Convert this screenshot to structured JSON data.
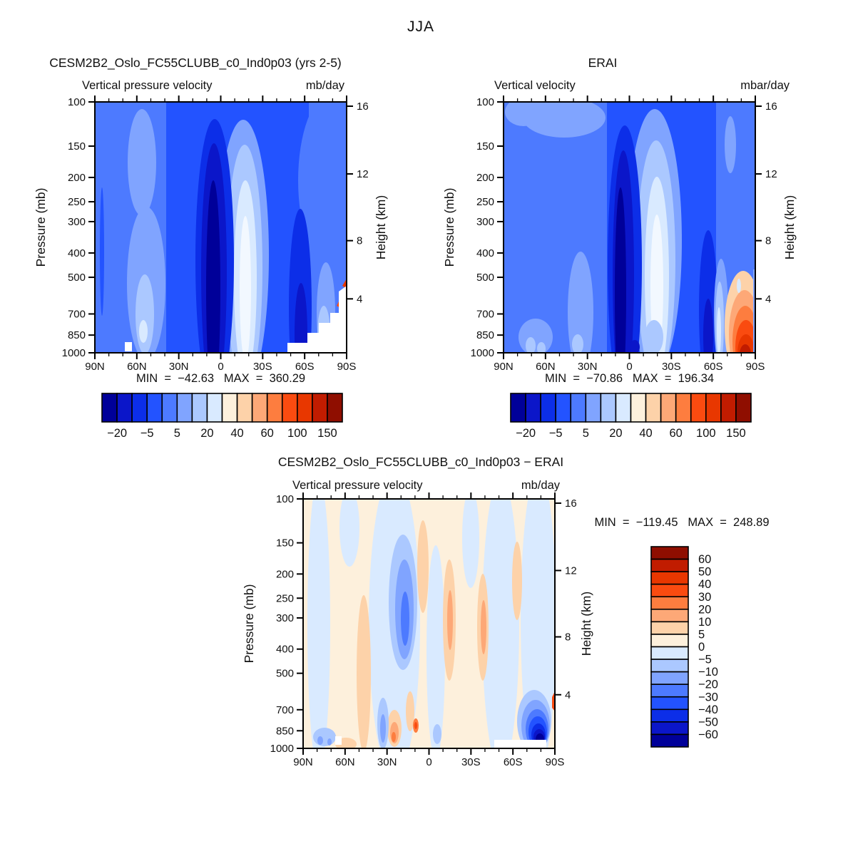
{
  "header": {
    "season_title": "JJA"
  },
  "colors": {
    "frame": "#000000",
    "text": "#111111",
    "palette_blue_to_red": [
      "#000099",
      "#0b16c9",
      "#0c2ee8",
      "#2353ff",
      "#4d7aff",
      "#80a4ff",
      "#abc8ff",
      "#d9eaff",
      "#fdf0dc",
      "#fdd2a9",
      "#fda877",
      "#fd7d3f",
      "#fa4b10",
      "#e83700",
      "#c11c00",
      "#8f0e00"
    ]
  },
  "axis": {
    "x_tick_labels": [
      "90N",
      "60N",
      "30N",
      "0",
      "30S",
      "60S",
      "90S"
    ],
    "pressure_tick_labels": [
      "100",
      "150",
      "200",
      "250",
      "300",
      "400",
      "500",
      "700",
      "850",
      "1000"
    ],
    "height_tick_labels": [
      "16",
      "12",
      "8",
      "4"
    ],
    "pressure_axis_title": "Pressure (mb)",
    "height_axis_title": "Height (km)"
  },
  "panels": {
    "model": {
      "title": "CESM2B2_Oslo_FC55CLUBB_c0_Ind0p03 (yrs 2-5)",
      "field_label": "Vertical pressure velocity",
      "units_label": "mb/day",
      "stats_text": "MIN  =  −42.63   MAX  =  360.29"
    },
    "erai": {
      "title": "ERAI",
      "field_label": "Vertical velocity",
      "units_label": "mbar/day",
      "stats_text": "MIN  =  −70.86   MAX  =  196.34"
    },
    "diff": {
      "title": "CESM2B2_Oslo_FC55CLUBB_c0_Ind0p03 − ERAI",
      "field_label": "Vertical pressure velocity",
      "units_label": "mb/day",
      "stats_text": "MIN  =  −119.45   MAX  =  248.89"
    }
  },
  "colorbars": {
    "horizontal_labels": [
      "−20",
      "−5",
      "5",
      "20",
      "40",
      "60",
      "100",
      "150"
    ],
    "vertical_labels_top_to_bottom": [
      "60",
      "50",
      "40",
      "30",
      "20",
      "10",
      "5",
      "0",
      "−5",
      "−10",
      "−20",
      "−30",
      "−40",
      "−50",
      "−60"
    ]
  },
  "chart_data": [
    {
      "type": "contour",
      "panel": "top-left",
      "title": "CESM2B2_Oslo_FC55CLUBB_c0_Ind0p03 (yrs 2-5)",
      "variable": "Vertical pressure velocity",
      "units": "mb/day",
      "season": "JJA",
      "min": -42.63,
      "max": 360.29,
      "x_axis": {
        "label_ticks": [
          "90N",
          "60N",
          "30N",
          "0",
          "30S",
          "60S",
          "90S"
        ],
        "lats_deg": [
          90,
          75,
          60,
          45,
          30,
          15,
          0,
          -15,
          -30,
          -45,
          -60,
          -75,
          -90
        ],
        "minor_tick_every_deg": 10
      },
      "y_axis": {
        "type": "log-pressure",
        "pressure_mb": [
          100,
          150,
          200,
          250,
          300,
          400,
          500,
          700,
          850,
          1000
        ],
        "height_km_ticks": [
          16,
          12,
          8,
          4
        ]
      },
      "contour_levels": [
        -30,
        -20,
        -10,
        -5,
        0,
        5,
        10,
        20,
        30,
        40,
        50,
        60,
        80,
        100,
        125,
        150
      ],
      "labeled_levels": [
        -20,
        -5,
        5,
        20,
        40,
        60,
        100,
        150
      ],
      "grid_note": "values_approx rows = pressure levels (top 100mb to bottom 1000mb), cols = lats 90N to 90S step 15; null = below surface (white)",
      "values_approx": [
        [
          -8,
          -8,
          -10,
          -12,
          -10,
          -18,
          -22,
          -6,
          -6,
          -8,
          -8,
          -6,
          -5
        ],
        [
          -8,
          -10,
          -12,
          -16,
          -12,
          -28,
          -32,
          -4,
          -8,
          -10,
          -10,
          -6,
          -5
        ],
        [
          -8,
          -10,
          -12,
          -18,
          -12,
          -38,
          -40,
          -2,
          -8,
          -10,
          -12,
          -8,
          -5
        ],
        [
          -8,
          -10,
          -14,
          -20,
          -10,
          -42,
          -38,
          -1,
          -8,
          -10,
          -12,
          -8,
          -5
        ],
        [
          -10,
          -10,
          -14,
          -20,
          -8,
          -42,
          -35,
          -1,
          -8,
          -10,
          -16,
          -8,
          -5
        ],
        [
          -10,
          -10,
          -14,
          -22,
          -8,
          -42,
          -30,
          0,
          -8,
          -10,
          -20,
          -8,
          -5
        ],
        [
          -10,
          -12,
          -16,
          -25,
          -8,
          -42,
          -28,
          0,
          -8,
          -12,
          -26,
          -5,
          -4
        ],
        [
          -10,
          -12,
          -16,
          -28,
          -12,
          -40,
          -22,
          -1,
          -10,
          -12,
          -30,
          30,
          150
        ],
        [
          -10,
          -12,
          -18,
          -26,
          -14,
          -38,
          -18,
          -3,
          -10,
          -12,
          -30,
          80,
          null
        ],
        [
          -8,
          -10,
          -15,
          -20,
          -10,
          -32,
          -12,
          -4,
          -8,
          -10,
          -26,
          null,
          null
        ]
      ]
    },
    {
      "type": "contour",
      "panel": "top-right",
      "title": "ERAI",
      "variable": "Vertical velocity",
      "units": "mbar/day",
      "season": "JJA",
      "min": -70.86,
      "max": 196.34,
      "x_axis": {
        "label_ticks": [
          "90N",
          "60N",
          "30N",
          "0",
          "30S",
          "60S",
          "90S"
        ],
        "lats_deg": [
          90,
          75,
          60,
          45,
          30,
          15,
          0,
          -15,
          -30,
          -45,
          -60,
          -75,
          -90
        ],
        "minor_tick_every_deg": 10
      },
      "y_axis": {
        "type": "log-pressure",
        "pressure_mb": [
          100,
          150,
          200,
          250,
          300,
          400,
          500,
          700,
          850,
          1000
        ],
        "height_km_ticks": [
          16,
          12,
          8,
          4
        ]
      },
      "contour_levels": [
        -30,
        -20,
        -10,
        -5,
        0,
        5,
        10,
        20,
        30,
        40,
        50,
        60,
        80,
        100,
        125,
        150
      ],
      "labeled_levels": [
        -20,
        -5,
        5,
        20,
        40,
        60,
        100,
        150
      ],
      "grid_note": "values_approx rows = pressure levels (100->1000mb), cols = lats 90N to 90S step 15",
      "values_approx": [
        [
          -8,
          -8,
          -10,
          -12,
          -10,
          -16,
          -20,
          -6,
          -6,
          -8,
          -8,
          -6,
          -5
        ],
        [
          -8,
          -10,
          -12,
          -14,
          -10,
          -26,
          -34,
          -5,
          -8,
          -10,
          -10,
          -6,
          -5
        ],
        [
          -8,
          -10,
          -12,
          -15,
          -10,
          -40,
          -48,
          -3,
          -8,
          -10,
          -12,
          -8,
          -5
        ],
        [
          -8,
          -10,
          -12,
          -15,
          -8,
          -48,
          -55,
          -2,
          -8,
          -10,
          -12,
          -8,
          -6
        ],
        [
          -8,
          -10,
          -12,
          -15,
          -8,
          -52,
          -58,
          -1,
          -8,
          -10,
          -15,
          -8,
          -6
        ],
        [
          -8,
          -10,
          -12,
          -16,
          -8,
          -56,
          -48,
          -1,
          -8,
          -10,
          -18,
          -6,
          -5
        ],
        [
          -10,
          -10,
          -14,
          -18,
          -8,
          -56,
          -38,
          -2,
          -8,
          -12,
          -24,
          10,
          -4
        ],
        [
          -10,
          -12,
          -15,
          -20,
          -10,
          -54,
          -28,
          -3,
          -10,
          -12,
          -28,
          90,
          -5
        ],
        [
          -12,
          -12,
          -16,
          -20,
          -12,
          -50,
          -22,
          -4,
          -10,
          -12,
          -30,
          150,
          -8
        ],
        [
          -10,
          -10,
          -14,
          -18,
          -10,
          -42,
          -15,
          -5,
          -8,
          -10,
          -26,
          190,
          -10
        ]
      ]
    },
    {
      "type": "contour",
      "panel": "bottom",
      "title": "CESM2B2_Oslo_FC55CLUBB_c0_Ind0p03 − ERAI",
      "variable": "Vertical pressure velocity (difference)",
      "units": "mb/day",
      "season": "JJA",
      "min": -119.45,
      "max": 248.89,
      "x_axis": {
        "label_ticks": [
          "90N",
          "60N",
          "30N",
          "0",
          "30S",
          "60S",
          "90S"
        ],
        "lats_deg": [
          90,
          75,
          60,
          45,
          30,
          15,
          0,
          -15,
          -30,
          -45,
          -60,
          -75,
          -90
        ],
        "minor_tick_every_deg": 10
      },
      "y_axis": {
        "type": "log-pressure",
        "pressure_mb": [
          100,
          150,
          200,
          250,
          300,
          400,
          500,
          700,
          850,
          1000
        ],
        "height_km_ticks": [
          16,
          12,
          8,
          4
        ]
      },
      "contour_levels": [
        -60,
        -50,
        -40,
        -30,
        -20,
        -10,
        -5,
        0,
        5,
        10,
        20,
        30,
        40,
        50,
        60
      ],
      "labeled_levels": [
        60,
        50,
        40,
        30,
        20,
        10,
        5,
        0,
        -5,
        -10,
        -20,
        -30,
        -40,
        -50,
        -60
      ],
      "grid_note": "values_approx rows = pressure levels (100->1000mb), cols = lats 90N to 90S step 15; null = below surface (white)",
      "values_approx": [
        [
          2,
          -2,
          2,
          2,
          -2,
          -3,
          2,
          3,
          2,
          -3,
          2,
          -3,
          2
        ],
        [
          2,
          -3,
          3,
          3,
          -5,
          -8,
          3,
          4,
          2,
          -4,
          3,
          -4,
          2
        ],
        [
          2,
          -3,
          3,
          4,
          -8,
          -15,
          6,
          6,
          2,
          -4,
          3,
          -5,
          3
        ],
        [
          3,
          -4,
          3,
          4,
          -10,
          -20,
          10,
          8,
          3,
          -5,
          3,
          -6,
          3
        ],
        [
          3,
          -4,
          4,
          5,
          -8,
          -22,
          12,
          8,
          3,
          -5,
          4,
          -8,
          3
        ],
        [
          3,
          -4,
          4,
          5,
          -6,
          -18,
          12,
          6,
          3,
          -5,
          4,
          -12,
          4
        ],
        [
          3,
          -4,
          4,
          6,
          -5,
          -12,
          10,
          5,
          3,
          -5,
          4,
          -18,
          4
        ],
        [
          3,
          -5,
          5,
          8,
          -8,
          -8,
          8,
          4,
          3,
          -5,
          5,
          -70,
          60
        ],
        [
          3,
          -8,
          5,
          10,
          -10,
          -12,
          6,
          4,
          3,
          -5,
          5,
          -110,
          null
        ],
        [
          2,
          -5,
          4,
          8,
          -6,
          -8,
          5,
          3,
          2,
          -4,
          4,
          null,
          null
        ]
      ]
    }
  ]
}
